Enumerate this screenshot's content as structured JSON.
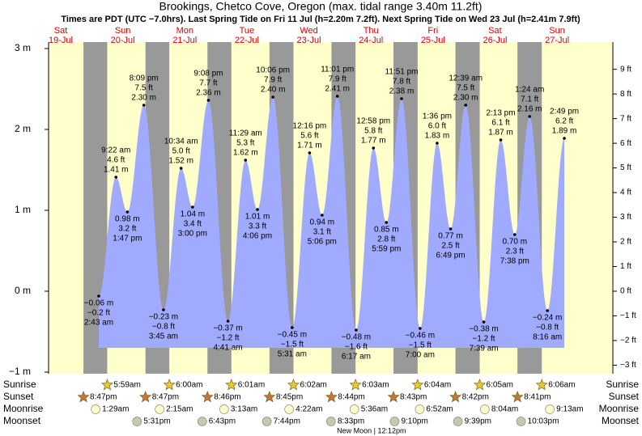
{
  "title": "Brookings, Chetco Cove, Oregon (max. tidal range 3.40m 11.2ft)",
  "subtitle": "Times are PDT (UTC −7.0hrs). Last Spring Tide on Fri 11 Jul (h=2.20m 7.2ft). Next Spring Tide on Wed 23 Jul (h=2.41m 7.9ft)",
  "m_ticks": [
    {
      "value": 3,
      "label": "3 m"
    },
    {
      "value": 2,
      "label": "2 m"
    },
    {
      "value": 1,
      "label": "1 m"
    },
    {
      "value": 0,
      "label": "0 m"
    },
    {
      "value": -1,
      "label": "−1 m"
    }
  ],
  "ft_ticks": [
    {
      "value": 9,
      "label": "9 ft"
    },
    {
      "value": 8,
      "label": "8 ft"
    },
    {
      "value": 7,
      "label": "7 ft"
    },
    {
      "value": 6,
      "label": "6 ft"
    },
    {
      "value": 5,
      "label": "5 ft"
    },
    {
      "value": 4,
      "label": "4 ft"
    },
    {
      "value": 3,
      "label": "3 ft"
    },
    {
      "value": 2,
      "label": "2 ft"
    },
    {
      "value": 1,
      "label": "1 ft"
    },
    {
      "value": 0,
      "label": "0 ft"
    },
    {
      "value": -1,
      "label": "−1 ft"
    },
    {
      "value": -2,
      "label": "−2 ft"
    },
    {
      "value": -3,
      "label": "−3 ft"
    }
  ],
  "rows": {
    "sunrise": "Sunrise",
    "sunset": "Sunset",
    "moonrise": "Moonrise",
    "moonset": "Moonset"
  },
  "days": [
    {
      "name": "Sat",
      "date": "19-Jul",
      "sunset": "8:47pm",
      "tides": []
    },
    {
      "name": "Sun",
      "date": "20-Jul",
      "sunrise": "5:59am",
      "sunset": "8:47pm",
      "moonrise": "1:29am",
      "moonset": "5:31pm",
      "tides": [
        {
          "type": "low",
          "time": "2:43 am",
          "m": -0.06,
          "m_label": "−0.06 m",
          "ft": -0.2,
          "ft_label": "−0.2 ft"
        },
        {
          "type": "high",
          "time": "9:22 am",
          "m": 1.41,
          "m_label": "1.41 m",
          "ft": 4.6,
          "ft_label": "4.6 ft"
        },
        {
          "type": "low",
          "time": "1:47 pm",
          "m": 0.98,
          "m_label": "0.98 m",
          "ft": 3.2,
          "ft_label": "3.2 ft"
        },
        {
          "type": "high",
          "time": "8:09 pm",
          "m": 2.3,
          "m_label": "2.30 m",
          "ft": 7.5,
          "ft_label": "7.5 ft"
        }
      ]
    },
    {
      "name": "Mon",
      "date": "21-Jul",
      "sunrise": "6:00am",
      "sunset": "8:46pm",
      "moonrise": "2:15am",
      "moonset": "6:43pm",
      "tides": [
        {
          "type": "low",
          "time": "3:45 am",
          "m": -0.23,
          "m_label": "−0.23 m",
          "ft": -0.8,
          "ft_label": "−0.8 ft"
        },
        {
          "type": "high",
          "time": "10:34 am",
          "m": 1.52,
          "m_label": "1.52 m",
          "ft": 5.0,
          "ft_label": "5.0 ft"
        },
        {
          "type": "low",
          "time": "3:00 pm",
          "m": 1.04,
          "m_label": "1.04 m",
          "ft": 3.4,
          "ft_label": "3.4 ft"
        },
        {
          "type": "high",
          "time": "9:08 pm",
          "m": 2.36,
          "m_label": "2.36 m",
          "ft": 7.7,
          "ft_label": "7.7 ft"
        }
      ]
    },
    {
      "name": "Tue",
      "date": "22-Jul",
      "sunrise": "6:01am",
      "sunset": "8:45pm",
      "moonrise": "3:13am",
      "moonset": "7:44pm",
      "tides": [
        {
          "type": "low",
          "time": "4:41 am",
          "m": -0.37,
          "m_label": "−0.37 m",
          "ft": -1.2,
          "ft_label": "−1.2 ft"
        },
        {
          "type": "high",
          "time": "11:29 am",
          "m": 1.62,
          "m_label": "1.62 m",
          "ft": 5.3,
          "ft_label": "5.3 ft"
        },
        {
          "type": "low",
          "time": "4:06 pm",
          "m": 1.01,
          "m_label": "1.01 m",
          "ft": 3.3,
          "ft_label": "3.3 ft"
        },
        {
          "type": "high",
          "time": "10:06 pm",
          "m": 2.4,
          "m_label": "2.40 m",
          "ft": 7.9,
          "ft_label": "7.9 ft"
        }
      ]
    },
    {
      "name": "Wed",
      "date": "23-Jul",
      "sunrise": "6:02am",
      "sunset": "8:44pm",
      "moonrise": "4:22am",
      "moonset": "8:33pm",
      "tides": [
        {
          "type": "low",
          "time": "5:31 am",
          "m": -0.45,
          "m_label": "−0.45 m",
          "ft": -1.5,
          "ft_label": "−1.5 ft"
        },
        {
          "type": "high",
          "time": "12:16 pm",
          "m": 1.71,
          "m_label": "1.71 m",
          "ft": 5.6,
          "ft_label": "5.6 ft"
        },
        {
          "type": "low",
          "time": "5:06 pm",
          "m": 0.94,
          "m_label": "0.94 m",
          "ft": 3.1,
          "ft_label": "3.1 ft"
        },
        {
          "type": "high",
          "time": "11:01 pm",
          "m": 2.41,
          "m_label": "2.41 m",
          "ft": 7.9,
          "ft_label": "7.9 ft"
        }
      ]
    },
    {
      "name": "Thu",
      "date": "24-Jul",
      "sunrise": "6:03am",
      "sunset": "8:43pm",
      "moonrise": "5:36am",
      "moonset": "9:10pm",
      "moon_phase": "New Moon | 12:12pm",
      "tides": [
        {
          "type": "low",
          "time": "6:17 am",
          "m": -0.48,
          "m_label": "−0.48 m",
          "ft": -1.6,
          "ft_label": "−1.6 ft"
        },
        {
          "type": "high",
          "time": "12:58 pm",
          "m": 1.77,
          "m_label": "1.77 m",
          "ft": 5.8,
          "ft_label": "5.8 ft"
        },
        {
          "type": "low",
          "time": "5:59 pm",
          "m": 0.85,
          "m_label": "0.85 m",
          "ft": 2.8,
          "ft_label": "2.8 ft"
        },
        {
          "type": "high",
          "time": "11:51 pm",
          "m": 2.38,
          "m_label": "2.38 m",
          "ft": 7.8,
          "ft_label": "7.8 ft"
        }
      ]
    },
    {
      "name": "Fri",
      "date": "25-Jul",
      "sunrise": "6:04am",
      "sunset": "8:42pm",
      "moonrise": "6:52am",
      "moonset": "9:39pm",
      "tides": [
        {
          "type": "low",
          "time": "7:00 am",
          "m": -0.46,
          "m_label": "−0.46 m",
          "ft": -1.5,
          "ft_label": "−1.5 ft"
        },
        {
          "type": "high",
          "time": "1:36 pm",
          "m": 1.83,
          "m_label": "1.83 m",
          "ft": 6.0,
          "ft_label": "6.0 ft"
        },
        {
          "type": "low",
          "time": "6:49 pm",
          "m": 0.77,
          "m_label": "0.77 m",
          "ft": 2.5,
          "ft_label": "2.5 ft"
        }
      ]
    },
    {
      "name": "Sat",
      "date": "26-Jul",
      "sunrise": "6:05am",
      "sunset": "8:41pm",
      "moonrise": "8:04am",
      "moonset": "10:03pm",
      "tides": [
        {
          "type": "high",
          "time": "12:39 am",
          "m": 2.3,
          "m_label": "2.30 m",
          "ft": 7.5,
          "ft_label": "7.5 ft"
        },
        {
          "type": "low",
          "time": "7:39 am",
          "m": -0.38,
          "m_label": "−0.38 m",
          "ft": -1.2,
          "ft_label": "−1.2 ft"
        },
        {
          "type": "high",
          "time": "2:13 pm",
          "m": 1.87,
          "m_label": "1.87 m",
          "ft": 6.1,
          "ft_label": "6.1 ft"
        },
        {
          "type": "low",
          "time": "7:38 pm",
          "m": 0.7,
          "m_label": "0.70 m",
          "ft": 2.3,
          "ft_label": "2.3 ft"
        }
      ]
    },
    {
      "name": "Sun",
      "date": "27-Jul",
      "sunrise": "6:06am",
      "moonrise": "9:13am",
      "tides": [
        {
          "type": "high",
          "time": "1:24 am",
          "m": 2.16,
          "m_label": "2.16 m",
          "ft": 7.1,
          "ft_label": "7.1 ft"
        },
        {
          "type": "low",
          "time": "8:16 am",
          "m": -0.24,
          "m_label": "−0.24 m",
          "ft": -0.8,
          "ft_label": "−0.8 ft"
        },
        {
          "type": "high",
          "time": "2:49 pm",
          "m": 1.89,
          "m_label": "1.89 m",
          "ft": 6.2,
          "ft_label": "6.2 ft"
        }
      ]
    }
  ]
}
